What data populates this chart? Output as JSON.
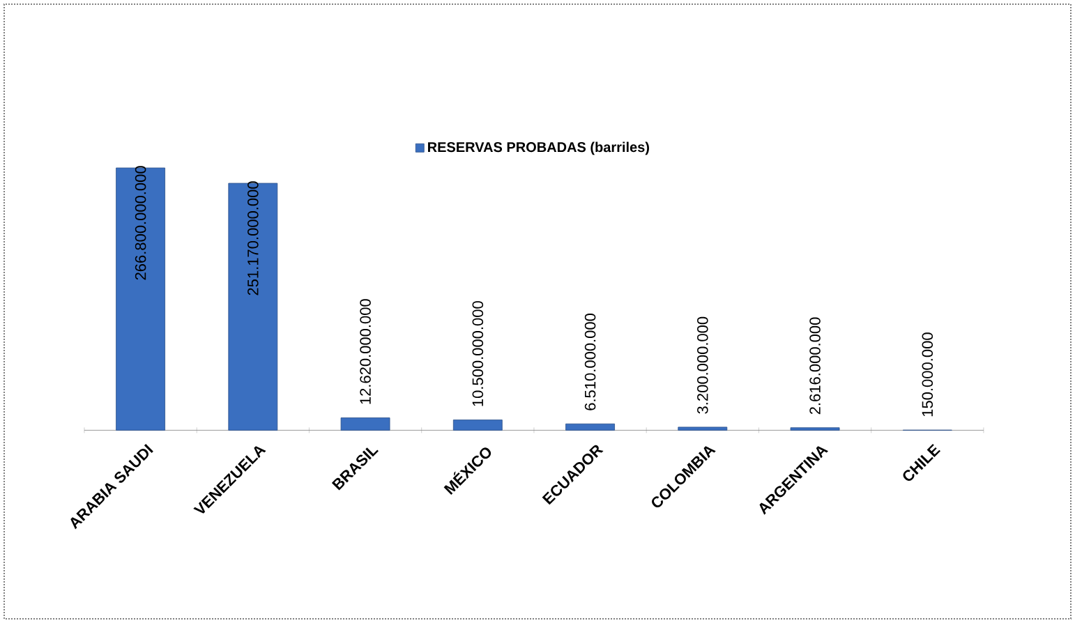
{
  "chart_data": {
    "type": "bar",
    "categories": [
      "ARABIA SAUDI",
      "VENEZUELA",
      "BRASIL",
      "MÉXICO",
      "ECUADOR",
      "COLOMBIA",
      "ARGENTINA",
      "CHILE"
    ],
    "series": [
      {
        "name": "RESERVAS PROBADAS (barriles)",
        "color": "#3a6fc0",
        "values": [
          266800000000,
          251170000000,
          12620000000,
          10500000000,
          6510000000,
          3200000000,
          2616000000,
          150000000
        ],
        "value_labels": [
          "266.800.000.000",
          "251.170.000.000",
          "12.620.000.000",
          "10.500.000.000",
          "6.510.000.000",
          "3.200.000.000",
          "2.616.000.000",
          "150.000.000"
        ]
      }
    ],
    "legend": "top"
  }
}
